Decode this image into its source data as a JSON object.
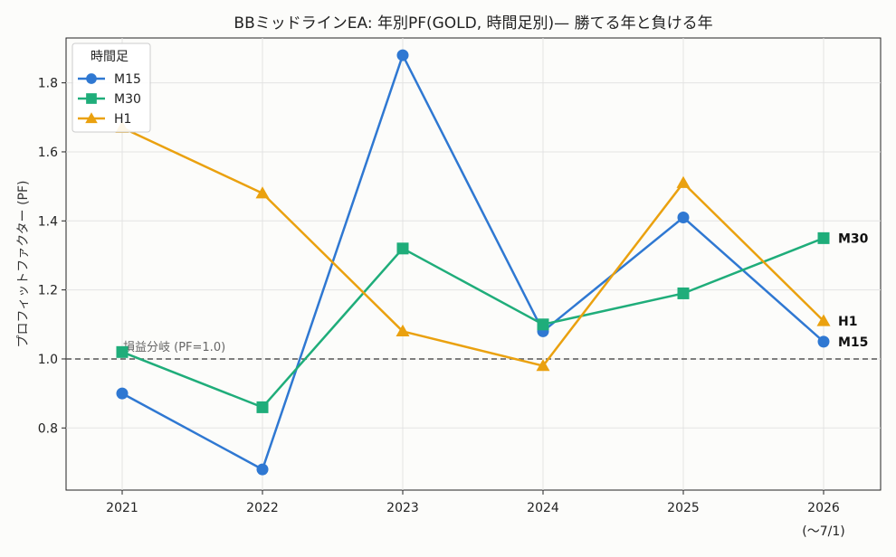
{
  "chart_data": {
    "type": "line",
    "title": "BBミッドラインEA: 年別PF(GOLD, 時間足別)— 勝てる年と負ける年",
    "xlabel": "",
    "ylabel": "プロフィットファクター (PF)",
    "categories": [
      "2021",
      "2022",
      "2023",
      "2024",
      "2025",
      "2026"
    ],
    "category_sublabels": [
      "",
      "",
      "",
      "",
      "",
      "(〜7/1)"
    ],
    "ylim": [
      0.62,
      1.93
    ],
    "yticks": [
      0.8,
      1.0,
      1.2,
      1.4,
      1.6,
      1.8
    ],
    "grid": true,
    "legend": {
      "title": "時間足",
      "position": "top-left"
    },
    "reference_line": {
      "y": 1.0,
      "label": "損益分岐 (PF=1.0)"
    },
    "series": [
      {
        "name": "M15",
        "color": "#2f78d2",
        "marker": "circle",
        "end_label": "M15",
        "values": [
          0.9,
          0.68,
          1.88,
          1.08,
          1.41,
          1.05
        ]
      },
      {
        "name": "M30",
        "color": "#1fad7a",
        "marker": "square",
        "end_label": "M30",
        "values": [
          1.02,
          0.86,
          1.32,
          1.1,
          1.19,
          1.35
        ]
      },
      {
        "name": "H1",
        "color": "#eaa10f",
        "marker": "triangle",
        "end_label": "H1",
        "values": [
          1.67,
          1.48,
          1.08,
          0.98,
          1.51,
          1.11
        ]
      }
    ]
  }
}
